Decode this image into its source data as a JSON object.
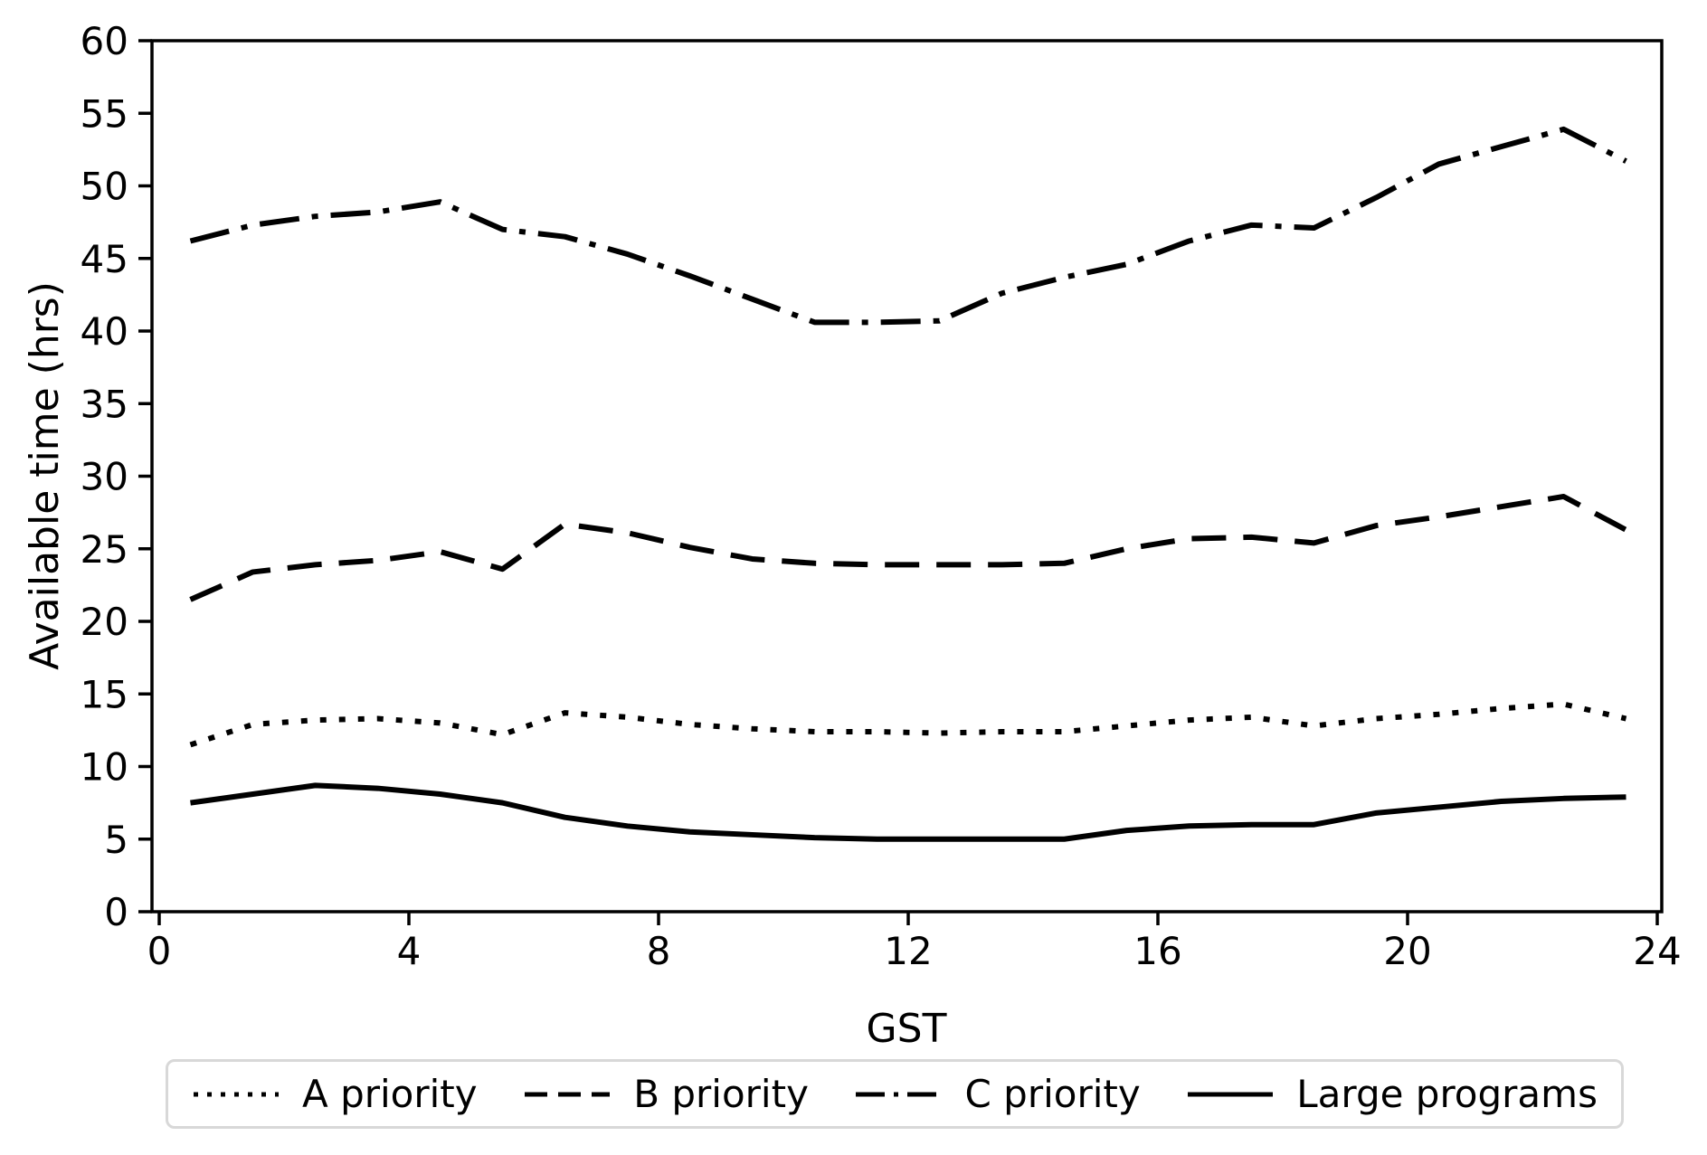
{
  "chart_data": {
    "type": "line",
    "xlabel": "GST",
    "ylabel": "Available time (hrs)",
    "xlim": [
      0,
      24
    ],
    "ylim": [
      0,
      60
    ],
    "xticks": [
      0,
      4,
      8,
      12,
      16,
      20,
      24
    ],
    "yticks": [
      0,
      5,
      10,
      15,
      20,
      25,
      30,
      35,
      40,
      45,
      50,
      55,
      60
    ],
    "grid": false,
    "line_color": "#000000",
    "legend_position": "bottom",
    "x": [
      0.5,
      1.5,
      2.5,
      3.5,
      4.5,
      5.5,
      6.5,
      7.5,
      8.5,
      9.5,
      10.5,
      11.5,
      12.5,
      13.5,
      14.5,
      15.5,
      16.5,
      17.5,
      18.5,
      19.5,
      20.5,
      21.5,
      22.5,
      23.5
    ],
    "series": [
      {
        "name": "A priority",
        "linestyle": "dotted",
        "values": [
          11.5,
          12.9,
          13.2,
          13.3,
          13.0,
          12.2,
          13.7,
          13.4,
          12.9,
          12.6,
          12.4,
          12.4,
          12.3,
          12.4,
          12.4,
          12.8,
          13.2,
          13.4,
          12.8,
          13.3,
          13.6,
          14.0,
          14.3,
          13.3
        ]
      },
      {
        "name": "B priority",
        "linestyle": "dashed",
        "values": [
          21.5,
          23.4,
          23.9,
          24.2,
          24.8,
          23.6,
          26.7,
          26.1,
          25.1,
          24.3,
          24.0,
          23.9,
          23.9,
          23.9,
          24.0,
          25.0,
          25.7,
          25.8,
          25.4,
          26.6,
          27.2,
          27.9,
          28.6,
          26.3
        ]
      },
      {
        "name": "C priority",
        "linestyle": "dashdot",
        "values": [
          46.2,
          47.3,
          47.9,
          48.2,
          48.9,
          47.0,
          46.5,
          45.3,
          43.8,
          42.2,
          40.6,
          40.6,
          40.7,
          42.6,
          43.7,
          44.6,
          46.2,
          47.3,
          47.1,
          49.2,
          51.5,
          52.7,
          53.9,
          51.7
        ]
      },
      {
        "name": "Large programs",
        "linestyle": "solid",
        "values": [
          7.5,
          8.1,
          8.7,
          8.5,
          8.1,
          7.5,
          6.5,
          5.9,
          5.5,
          5.3,
          5.1,
          5.0,
          5.0,
          5.0,
          5.0,
          5.6,
          5.9,
          6.0,
          6.0,
          6.8,
          7.2,
          7.6,
          7.8,
          7.9
        ]
      }
    ]
  }
}
